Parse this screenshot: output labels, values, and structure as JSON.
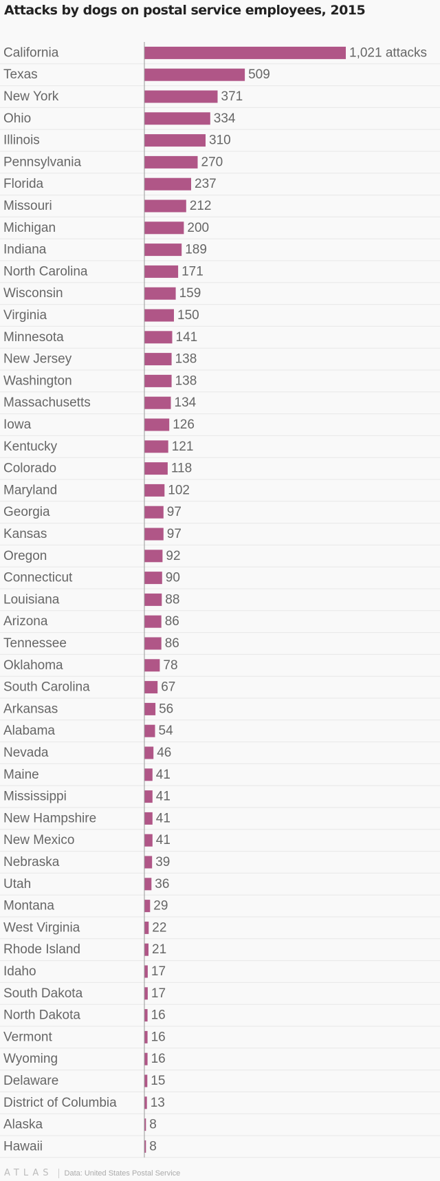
{
  "chart_data": {
    "type": "bar",
    "orientation": "horizontal",
    "title": "Attacks by dogs on postal service employees, 2015",
    "first_label_suffix": " attacks",
    "bar_color": "#b05687",
    "categories": [
      "California",
      "Texas",
      "New York",
      "Ohio",
      "Illinois",
      "Pennsylvania",
      "Florida",
      "Missouri",
      "Michigan",
      "Indiana",
      "North Carolina",
      "Wisconsin",
      "Virginia",
      "Minnesota",
      "New Jersey",
      "Washington",
      "Massachusetts",
      "Iowa",
      "Kentucky",
      "Colorado",
      "Maryland",
      "Georgia",
      "Kansas",
      "Oregon",
      "Connecticut",
      "Louisiana",
      "Arizona",
      "Tennessee",
      "Oklahoma",
      "South Carolina",
      "Arkansas",
      "Alabama",
      "Nevada",
      "Maine",
      "Mississippi",
      "New Hampshire",
      "New Mexico",
      "Nebraska",
      "Utah",
      "Montana",
      "West Virginia",
      "Rhode Island",
      "Idaho",
      "South Dakota",
      "North Dakota",
      "Vermont",
      "Wyoming",
      "Delaware",
      "District of Columbia",
      "Alaska",
      "Hawaii"
    ],
    "values": [
      1021,
      509,
      371,
      334,
      310,
      270,
      237,
      212,
      200,
      189,
      171,
      159,
      150,
      141,
      138,
      138,
      134,
      126,
      121,
      118,
      102,
      97,
      97,
      92,
      90,
      88,
      86,
      86,
      78,
      67,
      56,
      54,
      46,
      41,
      41,
      41,
      41,
      39,
      36,
      29,
      22,
      21,
      17,
      17,
      16,
      16,
      16,
      15,
      13,
      8,
      8
    ],
    "xlim": [
      0,
      1021
    ]
  },
  "footer": {
    "logo": "ATLAS",
    "source": "Data: United States Postal Service"
  }
}
